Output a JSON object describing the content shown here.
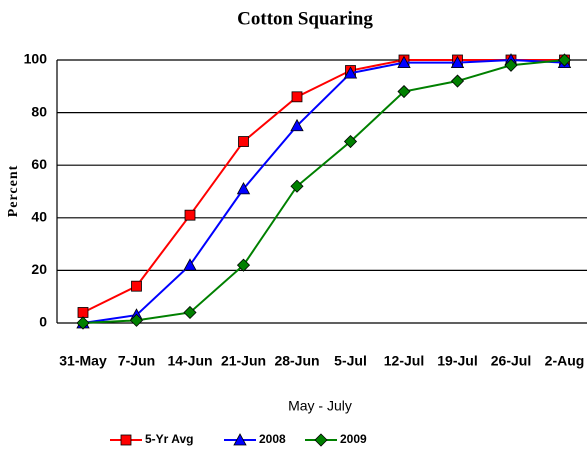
{
  "chart_data": {
    "type": "line",
    "title": "Cotton Squaring",
    "x_label": "May - July",
    "y_label": "Percent",
    "categories": [
      "31-May",
      "7-Jun",
      "14-Jun",
      "21-Jun",
      "28-Jun",
      "5-Jul",
      "12-Jul",
      "19-Jul",
      "26-Jul",
      "2-Aug"
    ],
    "series": [
      {
        "name": "5-Yr Avg",
        "color": "#ff0000",
        "marker": "square",
        "values": [
          4,
          14,
          41,
          69,
          86,
          96,
          100,
          100,
          100,
          100
        ]
      },
      {
        "name": "2008",
        "color": "#0000ff",
        "marker": "triangle",
        "values": [
          0,
          3,
          22,
          51,
          75,
          95,
          99,
          99,
          100,
          99
        ]
      },
      {
        "name": "2009",
        "color": "#008000",
        "marker": "diamond",
        "values": [
          0,
          1,
          4,
          22,
          52,
          69,
          88,
          92,
          98,
          100
        ]
      }
    ],
    "ylim": [
      0,
      100
    ],
    "yticks": [
      0,
      20,
      40,
      60,
      80,
      100
    ],
    "grid": true,
    "legend": "bottom"
  }
}
